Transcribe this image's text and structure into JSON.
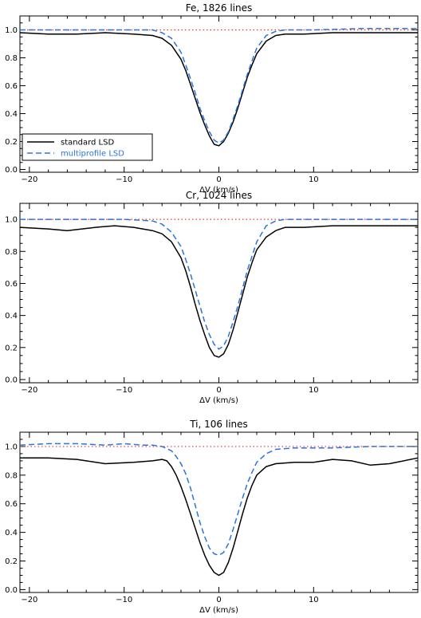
{
  "chart_data": [
    {
      "type": "line",
      "title": "Fe, 1826 lines",
      "xlabel": "ΔV (km/s)",
      "ylabel": "",
      "xlim": [
        -21,
        21
      ],
      "ylim": [
        -0.02,
        1.1
      ],
      "xticks": [
        -20,
        -10,
        0,
        10
      ],
      "xtick_labels": [
        "−20",
        "−10",
        "0",
        "10"
      ],
      "yticks": [
        0.0,
        0.2,
        0.4,
        0.6,
        0.8,
        1.0
      ],
      "ytick_labels": [
        "0.0",
        "0.2",
        "0.4",
        "0.6",
        "0.8",
        "1.0"
      ],
      "reference_line": {
        "y": 1.0,
        "color": "#e8312f",
        "style": "dotted"
      },
      "legend": {
        "position": "lower-left",
        "entries": [
          "standard LSD",
          "multiprofile LSD"
        ]
      },
      "series": [
        {
          "name": "standard LSD",
          "color": "#000000",
          "style": "solid",
          "x": [
            -21,
            -18,
            -15,
            -12,
            -9,
            -7,
            -6,
            -5,
            -4,
            -3.5,
            -3,
            -2.5,
            -2,
            -1.5,
            -1,
            -0.5,
            0,
            0.5,
            1,
            1.5,
            2,
            2.5,
            3,
            3.5,
            4,
            5,
            6,
            7,
            9,
            12,
            15,
            18,
            21
          ],
          "y": [
            0.98,
            0.97,
            0.97,
            0.98,
            0.97,
            0.96,
            0.94,
            0.89,
            0.79,
            0.71,
            0.61,
            0.51,
            0.41,
            0.32,
            0.24,
            0.18,
            0.17,
            0.2,
            0.26,
            0.34,
            0.44,
            0.55,
            0.66,
            0.75,
            0.83,
            0.92,
            0.96,
            0.97,
            0.97,
            0.98,
            0.98,
            0.98,
            0.98
          ]
        },
        {
          "name": "multiprofile LSD",
          "color": "#2b74d8",
          "style": "dashed",
          "x": [
            -21,
            -15,
            -10,
            -7,
            -6,
            -5,
            -4,
            -3.5,
            -3,
            -2.5,
            -2,
            -1.5,
            -1,
            -0.5,
            0,
            0.5,
            1,
            1.5,
            2,
            2.5,
            3,
            3.5,
            4,
            5,
            6,
            7,
            10,
            15,
            21
          ],
          "y": [
            1.0,
            1.0,
            1.0,
            1.0,
            0.98,
            0.94,
            0.84,
            0.75,
            0.65,
            0.55,
            0.44,
            0.35,
            0.27,
            0.21,
            0.19,
            0.21,
            0.27,
            0.36,
            0.46,
            0.57,
            0.68,
            0.78,
            0.87,
            0.96,
            0.99,
            1.0,
            1.0,
            1.01,
            1.01
          ]
        }
      ]
    },
    {
      "type": "line",
      "title": "Cr, 1024 lines",
      "xlabel": "ΔV (km/s)",
      "ylabel": "",
      "xlim": [
        -21,
        21
      ],
      "ylim": [
        -0.02,
        1.1
      ],
      "xticks": [
        -20,
        -10,
        0,
        10
      ],
      "xtick_labels": [
        "−20",
        "−10",
        "0",
        "10"
      ],
      "yticks": [
        0.0,
        0.2,
        0.4,
        0.6,
        0.8,
        1.0
      ],
      "ytick_labels": [
        "0.0",
        "0.2",
        "0.4",
        "0.6",
        "0.8",
        "1.0"
      ],
      "reference_line": {
        "y": 1.0,
        "color": "#e8312f",
        "style": "dotted"
      },
      "series": [
        {
          "name": "standard LSD",
          "color": "#000000",
          "style": "solid",
          "x": [
            -21,
            -18,
            -16,
            -13,
            -11,
            -9,
            -7,
            -6,
            -5,
            -4,
            -3.5,
            -3,
            -2.5,
            -2,
            -1.5,
            -1,
            -0.5,
            0,
            0.5,
            1,
            1.5,
            2,
            2.5,
            3,
            3.5,
            4,
            5,
            6,
            7,
            9,
            12,
            16,
            21
          ],
          "y": [
            0.95,
            0.94,
            0.93,
            0.95,
            0.96,
            0.95,
            0.93,
            0.91,
            0.86,
            0.76,
            0.68,
            0.58,
            0.47,
            0.37,
            0.28,
            0.2,
            0.15,
            0.14,
            0.16,
            0.22,
            0.31,
            0.42,
            0.53,
            0.64,
            0.73,
            0.81,
            0.89,
            0.93,
            0.95,
            0.95,
            0.96,
            0.96,
            0.96
          ]
        },
        {
          "name": "multiprofile LSD",
          "color": "#2b74d8",
          "style": "dashed",
          "x": [
            -21,
            -15,
            -10,
            -7,
            -6,
            -5,
            -4,
            -3.5,
            -3,
            -2.5,
            -2,
            -1.5,
            -1,
            -0.5,
            0,
            0.5,
            1,
            1.5,
            2,
            2.5,
            3,
            3.5,
            4,
            5,
            6,
            7,
            10,
            15,
            21
          ],
          "y": [
            1.0,
            1.0,
            1.0,
            0.99,
            0.97,
            0.92,
            0.83,
            0.75,
            0.66,
            0.56,
            0.46,
            0.36,
            0.28,
            0.22,
            0.19,
            0.21,
            0.27,
            0.36,
            0.46,
            0.57,
            0.68,
            0.77,
            0.86,
            0.96,
            0.99,
            1.0,
            1.0,
            1.0,
            1.0
          ]
        }
      ]
    },
    {
      "type": "line",
      "title": "Ti, 106 lines",
      "xlabel": "ΔV (km/s)",
      "ylabel": "",
      "xlim": [
        -21,
        21
      ],
      "ylim": [
        -0.02,
        1.1
      ],
      "xticks": [
        -20,
        -10,
        0,
        10
      ],
      "xtick_labels": [
        "−20",
        "−10",
        "0",
        "10"
      ],
      "yticks": [
        0.0,
        0.2,
        0.4,
        0.6,
        0.8,
        1.0
      ],
      "ytick_labels": [
        "0.0",
        "0.2",
        "0.4",
        "0.6",
        "0.8",
        "1.0"
      ],
      "reference_line": {
        "y": 1.0,
        "color": "#e8312f",
        "style": "dotted"
      },
      "series": [
        {
          "name": "standard LSD",
          "color": "#000000",
          "style": "solid",
          "x": [
            -21,
            -18,
            -15,
            -12,
            -9,
            -7,
            -6,
            -5.5,
            -5,
            -4.5,
            -4,
            -3.5,
            -3,
            -2.5,
            -2,
            -1.5,
            -1,
            -0.5,
            0,
            0.5,
            1,
            1.5,
            2,
            2.5,
            3,
            3.5,
            4,
            5,
            6,
            8,
            10,
            12,
            14,
            16,
            18,
            21
          ],
          "y": [
            0.92,
            0.92,
            0.91,
            0.88,
            0.89,
            0.9,
            0.91,
            0.9,
            0.86,
            0.8,
            0.72,
            0.63,
            0.53,
            0.43,
            0.33,
            0.24,
            0.17,
            0.12,
            0.1,
            0.12,
            0.19,
            0.29,
            0.41,
            0.53,
            0.64,
            0.73,
            0.8,
            0.86,
            0.88,
            0.89,
            0.89,
            0.91,
            0.9,
            0.87,
            0.88,
            0.92
          ]
        },
        {
          "name": "multiprofile LSD",
          "color": "#2b74d8",
          "style": "dashed",
          "x": [
            -21,
            -18,
            -15,
            -12,
            -10,
            -8,
            -7,
            -6,
            -5,
            -4.5,
            -4,
            -3.5,
            -3,
            -2.5,
            -2,
            -1.5,
            -1,
            -0.5,
            0,
            0.5,
            1,
            1.5,
            2,
            2.5,
            3,
            3.5,
            4,
            5,
            6,
            8,
            12,
            16,
            19,
            21
          ],
          "y": [
            1.01,
            1.02,
            1.02,
            1.01,
            1.02,
            1.01,
            1.01,
            1.0,
            0.97,
            0.93,
            0.88,
            0.81,
            0.71,
            0.59,
            0.47,
            0.37,
            0.29,
            0.25,
            0.24,
            0.26,
            0.32,
            0.42,
            0.53,
            0.64,
            0.74,
            0.82,
            0.89,
            0.95,
            0.98,
            0.99,
            0.99,
            1.0,
            1.0,
            1.0
          ]
        }
      ]
    }
  ]
}
